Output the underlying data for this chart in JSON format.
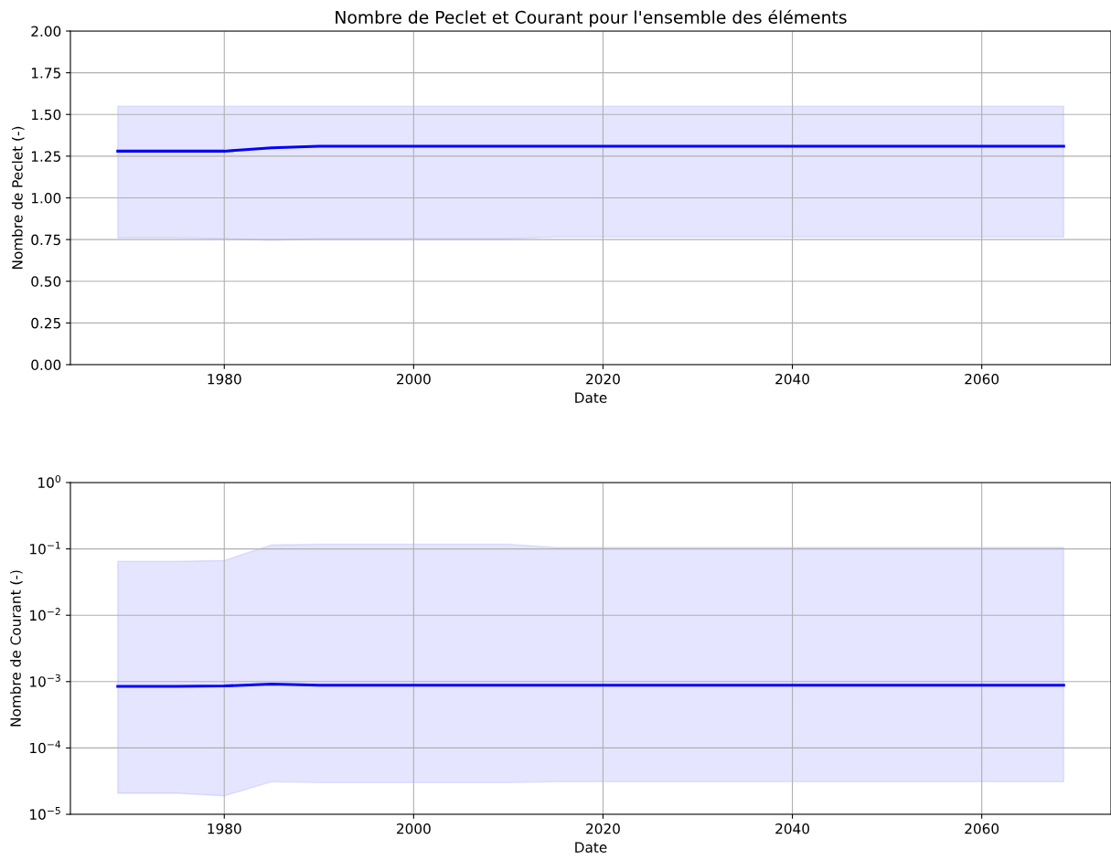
{
  "chart_data": [
    {
      "type": "line",
      "title": "Nombre de Peclet et Courant pour l'ensemble des éléments",
      "xlabel": "Date",
      "ylabel": "Nombre de Peclet (-)",
      "x": [
        1968.75,
        1975,
        1980,
        1985,
        1990,
        2000,
        2010,
        2015,
        2020,
        2040,
        2068.65
      ],
      "series": [
        {
          "color": "#0000ff",
          "values": [
            1.28,
            1.28,
            1.28,
            1.3,
            1.31,
            1.31,
            1.31,
            1.31,
            1.31,
            1.31,
            1.31
          ],
          "lower": [
            0.76,
            0.76,
            0.755,
            0.745,
            0.755,
            0.755,
            0.755,
            0.765,
            0.765,
            0.765,
            0.765
          ],
          "upper": [
            1.55,
            1.55,
            1.55,
            1.55,
            1.55,
            1.55,
            1.55,
            1.55,
            1.55,
            1.55,
            1.55
          ]
        }
      ],
      "xlim": [
        1963.75,
        2073.65
      ],
      "xticks": [
        1980,
        2000,
        2020,
        2040,
        2060
      ],
      "ylim": [
        0,
        2
      ],
      "yticks": [
        {
          "value": 0,
          "label": "0.00"
        },
        0.25,
        {
          "value": 0.5,
          "label": "0.50"
        },
        0.75,
        {
          "value": 1,
          "label": "1.00"
        },
        1.25,
        {
          "value": 1.5,
          "label": "1.50"
        },
        1.75,
        {
          "value": 2,
          "label": "2.00"
        }
      ],
      "grid": true,
      "line_style": "solid",
      "marker": "none"
    },
    {
      "type": "line",
      "xlabel": "Date",
      "ylabel": "Nombre de Courant (-)",
      "log": "y",
      "x": [
        1968.75,
        1975,
        1980,
        1985,
        1990,
        2000,
        2010,
        2015,
        2020,
        2040,
        2068.65
      ],
      "series": [
        {
          "color": "#0000ff",
          "values": [
            0.00085,
            0.00085,
            0.00086,
            0.00092,
            0.00088,
            0.00088,
            0.00088,
            0.00088,
            0.00088,
            0.00088,
            0.00088
          ],
          "lower": [
            2.07e-05,
            2.07e-05,
            1.9e-05,
            3.1e-05,
            3e-05,
            3e-05,
            3e-05,
            3.1e-05,
            3.1e-05,
            3.1e-05,
            3.1e-05
          ],
          "upper": [
            0.065,
            0.065,
            0.067,
            0.115,
            0.118,
            0.118,
            0.118,
            0.105,
            0.105,
            0.105,
            0.105
          ]
        }
      ],
      "xlim": [
        1963.75,
        2073.65
      ],
      "xticks": [
        1980,
        2000,
        2020,
        2040,
        2060
      ],
      "ylim": [
        1e-05,
        1
      ],
      "yticks": [
        {
          "value": 1e-05,
          "label": "10$^{−5}$"
        },
        {
          "value": 0.0001,
          "label": "10$^{−4}$"
        },
        {
          "value": 0.001,
          "label": "10$^{−3}$"
        },
        {
          "value": 0.01,
          "label": "10$^{−2}$"
        },
        {
          "value": 0.1,
          "label": "10$^{−1}$"
        },
        {
          "value": 1,
          "label": "10$^{0}$"
        }
      ],
      "grid": true,
      "line_style": "solid",
      "marker": "none"
    }
  ]
}
